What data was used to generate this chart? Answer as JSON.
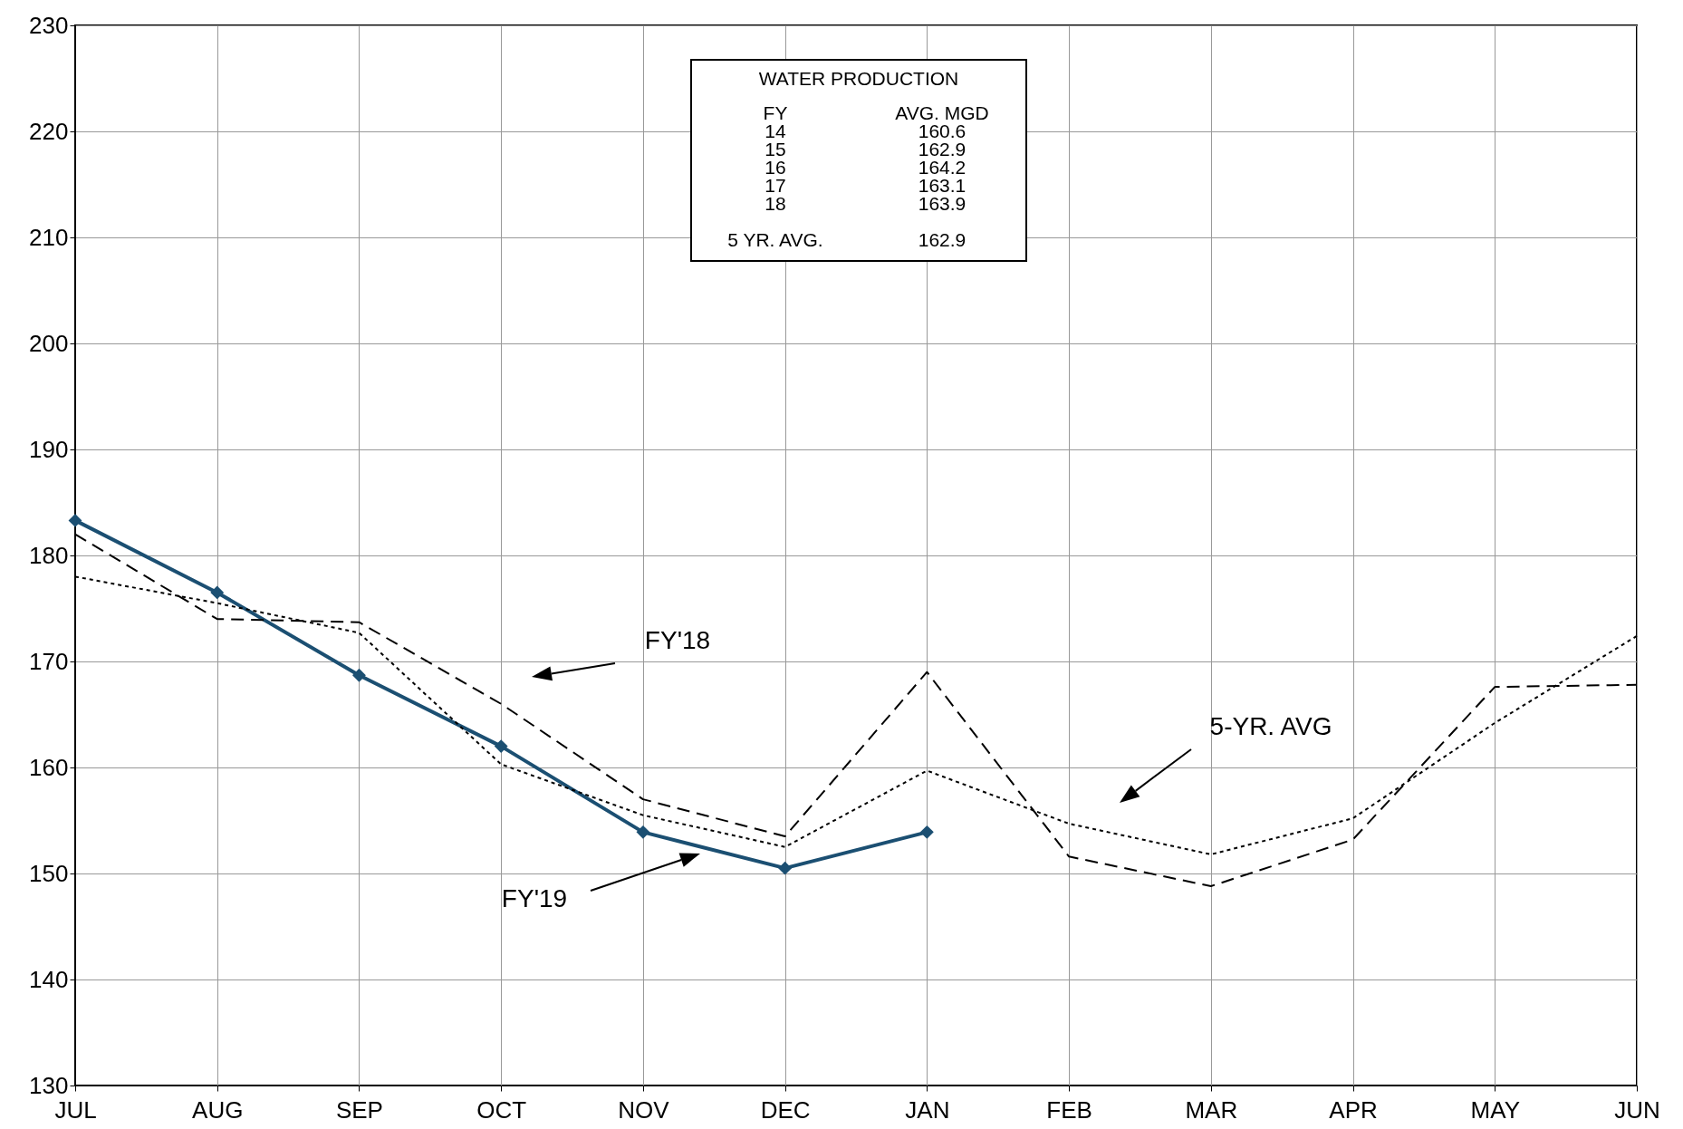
{
  "chart_data": {
    "type": "line",
    "categories": [
      "JUL",
      "AUG",
      "SEP",
      "OCT",
      "NOV",
      "DEC",
      "JAN",
      "FEB",
      "MAR",
      "APR",
      "MAY",
      "JUN"
    ],
    "series": [
      {
        "color": "#1b4f72",
        "marker": "diamond",
        "line_style": "solid",
        "values": [
          183.3,
          176.5,
          168.7,
          162,
          153.9,
          150.5,
          153.9,
          null,
          null,
          null,
          null,
          null
        ]
      },
      {
        "color": "#000000",
        "marker": "none",
        "line_style": "dashed",
        "values": [
          182,
          174,
          173.7,
          166,
          157,
          153.5,
          169,
          151.6,
          148.8,
          153.2,
          167.6,
          167.8
        ]
      },
      {
        "color": "#000000",
        "marker": "none",
        "line_style": "dotted",
        "values": [
          178,
          175.5,
          172.7,
          160.3,
          155.5,
          152.5,
          159.7,
          154.7,
          151.8,
          155.2,
          164.2,
          172.4
        ]
      }
    ],
    "ylim": [
      130,
      230
    ],
    "yticks": [
      130,
      140,
      150,
      160,
      170,
      180,
      190,
      200,
      210,
      220,
      230
    ],
    "grid": true,
    "annotations": [
      "WATER PRODUCTION",
      "FY",
      "AVG. MGD",
      "14",
      "160.6",
      "15",
      "162.9",
      "16",
      "164.2",
      "17",
      "163.1",
      "18",
      "163.9",
      "5 YR. AVG.",
      "162.9",
      "FY'18",
      "5-YR. AVG",
      "FY'19"
    ]
  }
}
